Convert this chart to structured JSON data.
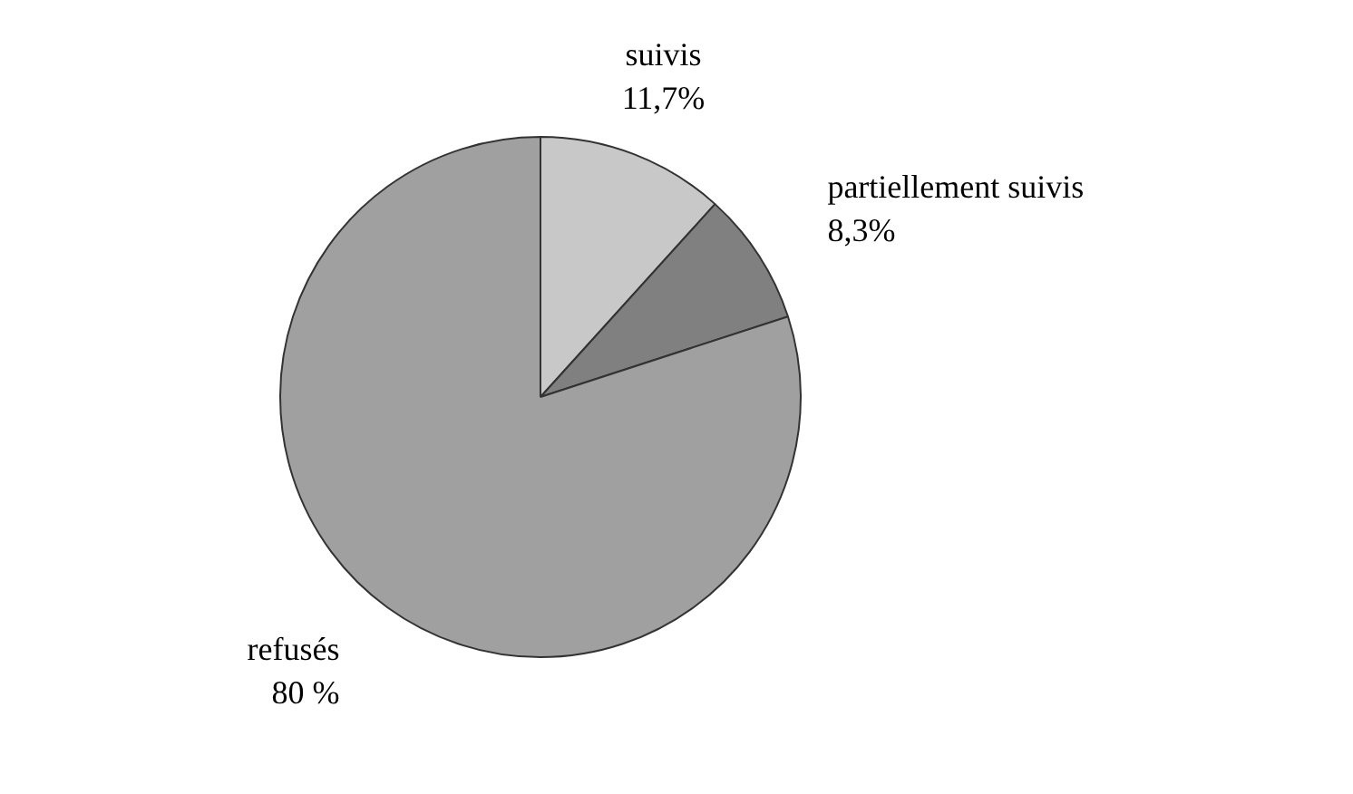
{
  "chart_data": {
    "type": "pie",
    "categories": [
      "suivis",
      "partiellement suivis",
      "refusés"
    ],
    "values": [
      11.7,
      8.3,
      80
    ],
    "value_labels": [
      "11,7%",
      "8,3%",
      "80 %"
    ],
    "colors": [
      "#c8c8c8",
      "#808080",
      "#a0a0a0"
    ],
    "legend": false
  }
}
